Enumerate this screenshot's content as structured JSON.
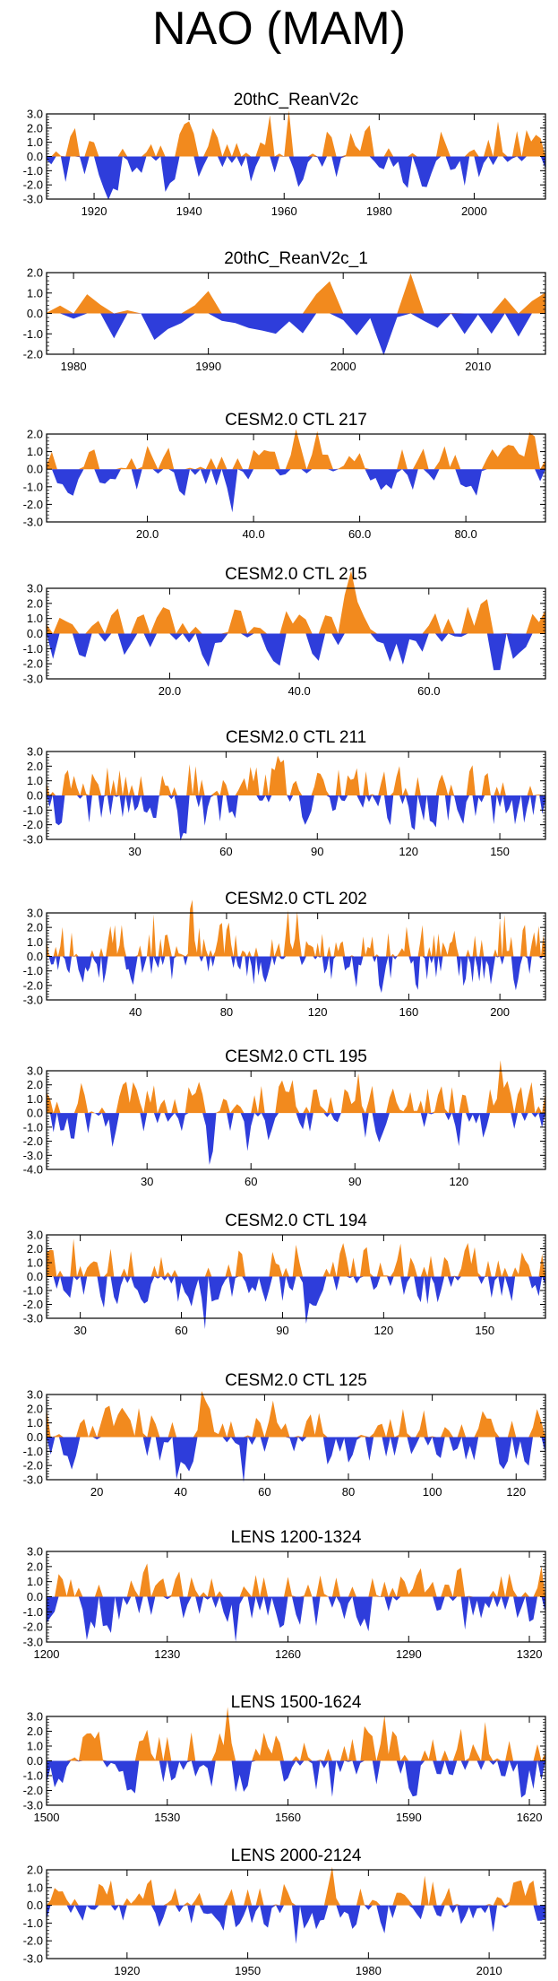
{
  "figure": {
    "title": "NAO (MAM)",
    "colors": {
      "positive": "#f28a1e",
      "negative": "#2e3ddb",
      "axis": "#000000"
    }
  },
  "chart_data": [
    {
      "type": "area",
      "title": "20thC_ReanV2c",
      "x_start": 1910,
      "x_end": 2015,
      "ylim": [
        -3,
        3
      ],
      "yticks": [
        "3.0",
        "2.0",
        "1.0",
        "0.0",
        "-1.0",
        "-2.0",
        "-3.0"
      ],
      "yticks_values": [
        3,
        2,
        1,
        0,
        -1,
        -2,
        -3
      ],
      "xticks": [
        1920,
        1940,
        1960,
        1980,
        2000
      ],
      "xtick_labels": [
        "1920",
        "1940",
        "1960",
        "1980",
        "2000"
      ]
    },
    {
      "type": "area",
      "title": "20thC_ReanV2c_1",
      "x_start": 1978,
      "x_end": 2015,
      "ylim": [
        -2,
        2
      ],
      "yticks": [
        "2.0",
        "1.0",
        "0.0",
        "-1.0",
        "-2.0"
      ],
      "yticks_values": [
        2,
        1,
        0,
        -1,
        -2
      ],
      "xticks": [
        1980,
        1990,
        2000,
        2010
      ],
      "xtick_labels": [
        "1980",
        "1990",
        "2000",
        "2010"
      ]
    },
    {
      "type": "area",
      "title": "CESM2.0 CTL 217",
      "x_start": 1,
      "x_end": 95,
      "ylim": [
        -3,
        2
      ],
      "yticks": [
        "2.0",
        "1.0",
        "0.0",
        "-1.0",
        "-2.0",
        "-3.0"
      ],
      "yticks_values": [
        2,
        1,
        0,
        -1,
        -2,
        -3
      ],
      "xticks": [
        20,
        40,
        60,
        80
      ],
      "xtick_labels": [
        "20.0",
        "40.0",
        "60.0",
        "80.0"
      ]
    },
    {
      "type": "area",
      "title": "CESM2.0 CTL 215",
      "x_start": 1,
      "x_end": 78,
      "ylim": [
        -3,
        3
      ],
      "yticks": [
        "3.0",
        "2.0",
        "1.0",
        "0.0",
        "-1.0",
        "-2.0",
        "-3.0"
      ],
      "yticks_values": [
        3,
        2,
        1,
        0,
        -1,
        -2,
        -3
      ],
      "xticks": [
        20,
        40,
        60
      ],
      "xtick_labels": [
        "20.0",
        "40.0",
        "60.0"
      ]
    },
    {
      "type": "area",
      "title": "CESM2.0 CTL 211",
      "x_start": 1,
      "x_end": 165,
      "ylim": [
        -3,
        3
      ],
      "yticks": [
        "3.0",
        "2.0",
        "1.0",
        "0.0",
        "-1.0",
        "-2.0",
        "-3.0"
      ],
      "yticks_values": [
        3,
        2,
        1,
        0,
        -1,
        -2,
        -3
      ],
      "xticks": [
        30,
        60,
        90,
        120,
        150
      ],
      "xtick_labels": [
        "30",
        "60",
        "90",
        "120",
        "150"
      ]
    },
    {
      "type": "area",
      "title": "CESM2.0 CTL 202",
      "x_start": 1,
      "x_end": 220,
      "ylim": [
        -3,
        3
      ],
      "yticks": [
        "3.0",
        "2.0",
        "1.0",
        "0.0",
        "-1.0",
        "-2.0",
        "-3.0"
      ],
      "yticks_values": [
        3,
        2,
        1,
        0,
        -1,
        -2,
        -3
      ],
      "xticks": [
        40,
        80,
        120,
        160,
        200
      ],
      "xtick_labels": [
        "40",
        "80",
        "120",
        "160",
        "200"
      ]
    },
    {
      "type": "area",
      "title": "CESM2.0 CTL 195",
      "x_start": 1,
      "x_end": 145,
      "ylim": [
        -4,
        3
      ],
      "yticks": [
        "3.0",
        "2.0",
        "1.0",
        "0.0",
        "-1.0",
        "-2.0",
        "-3.0",
        "-4.0"
      ],
      "yticks_values": [
        3,
        2,
        1,
        0,
        -1,
        -2,
        -3,
        -4
      ],
      "xticks": [
        30,
        60,
        90,
        120
      ],
      "xtick_labels": [
        "30",
        "60",
        "90",
        "120"
      ]
    },
    {
      "type": "area",
      "title": "CESM2.0 CTL 194",
      "x_start": 20,
      "x_end": 168,
      "ylim": [
        -3,
        3
      ],
      "yticks": [
        "3.0",
        "2.0",
        "1.0",
        "0.0",
        "-1.0",
        "-2.0",
        "-3.0"
      ],
      "yticks_values": [
        3,
        2,
        1,
        0,
        -1,
        -2,
        -3
      ],
      "xticks": [
        30,
        60,
        90,
        120,
        150
      ],
      "xtick_labels": [
        "30",
        "60",
        "90",
        "120",
        "150"
      ]
    },
    {
      "type": "area",
      "title": "CESM2.0 CTL 125",
      "x_start": 8,
      "x_end": 127,
      "ylim": [
        -3,
        3
      ],
      "yticks": [
        "3.0",
        "2.0",
        "1.0",
        "0.0",
        "-1.0",
        "-2.0",
        "-3.0"
      ],
      "yticks_values": [
        3,
        2,
        1,
        0,
        -1,
        -2,
        -3
      ],
      "xticks": [
        20,
        40,
        60,
        80,
        100,
        120
      ],
      "xtick_labels": [
        "20",
        "40",
        "60",
        "80",
        "100",
        "120"
      ]
    },
    {
      "type": "area",
      "title": "LENS 1200-1324",
      "x_start": 1200,
      "x_end": 1324,
      "ylim": [
        -3,
        3
      ],
      "yticks": [
        "3.0",
        "2.0",
        "1.0",
        "0.0",
        "-1.0",
        "-2.0",
        "-3.0"
      ],
      "yticks_values": [
        3,
        2,
        1,
        0,
        -1,
        -2,
        -3
      ],
      "xticks": [
        1200,
        1230,
        1260,
        1290,
        1320
      ],
      "xtick_labels": [
        "1200",
        "1230",
        "1260",
        "1290",
        "1320"
      ]
    },
    {
      "type": "area",
      "title": "LENS 1500-1624",
      "x_start": 1500,
      "x_end": 1624,
      "ylim": [
        -3,
        3
      ],
      "yticks": [
        "3.0",
        "2.0",
        "1.0",
        "0.0",
        "-1.0",
        "-2.0",
        "-3.0"
      ],
      "yticks_values": [
        3,
        2,
        1,
        0,
        -1,
        -2,
        -3
      ],
      "xticks": [
        1500,
        1530,
        1560,
        1590,
        1620
      ],
      "xtick_labels": [
        "1500",
        "1530",
        "1560",
        "1590",
        "1620"
      ]
    },
    {
      "type": "area",
      "title": "LENS 2000-2124",
      "x_start": 1900,
      "x_end": 2024,
      "ylim": [
        -3,
        2
      ],
      "yticks": [
        "2.0",
        "1.0",
        "0.0",
        "-1.0",
        "-2.0",
        "-3.0"
      ],
      "yticks_values": [
        2,
        1,
        0,
        -1,
        -2,
        -3
      ],
      "xticks": [
        1920,
        1950,
        1980,
        2010
      ],
      "xtick_labels": [
        "1920",
        "1950",
        "1980",
        "2010"
      ]
    }
  ]
}
